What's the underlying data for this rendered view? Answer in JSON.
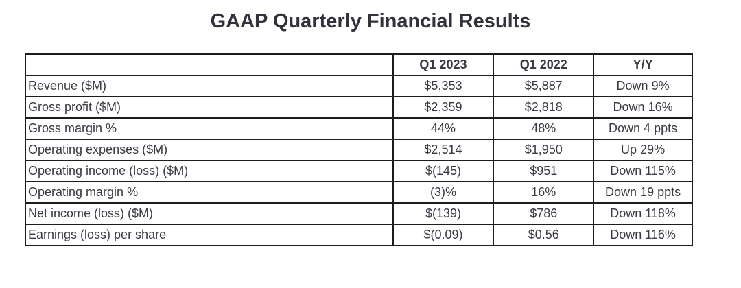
{
  "chart_data": {
    "type": "table",
    "title": "GAAP Quarterly Financial Results",
    "columns": [
      "",
      "Q1 2023",
      "Q1 2022",
      "Y/Y"
    ],
    "rows": [
      [
        "Revenue ($M)",
        "$5,353",
        "$5,887",
        "Down 9%"
      ],
      [
        "Gross profit ($M)",
        "$2,359",
        "$2,818",
        "Down 16%"
      ],
      [
        "Gross margin %",
        "44%",
        "48%",
        "Down 4 ppts"
      ],
      [
        "Operating expenses ($M)",
        "$2,514",
        "$1,950",
        "Up 29%"
      ],
      [
        "Operating income (loss) ($M)",
        "$(145)",
        "$951",
        "Down 115%"
      ],
      [
        "Operating margin %",
        "(3)%",
        "16%",
        "Down 19 ppts"
      ],
      [
        "Net income (loss) ($M)",
        "$(139)",
        "$786",
        "Down 118%"
      ],
      [
        "Earnings (loss) per share",
        "$(0.09)",
        "$0.56",
        "Down 116%"
      ]
    ]
  },
  "colors": {
    "text": "#3a3a44",
    "title": "#32323c",
    "border": "#1c1c1c",
    "background": "#ffffff"
  }
}
